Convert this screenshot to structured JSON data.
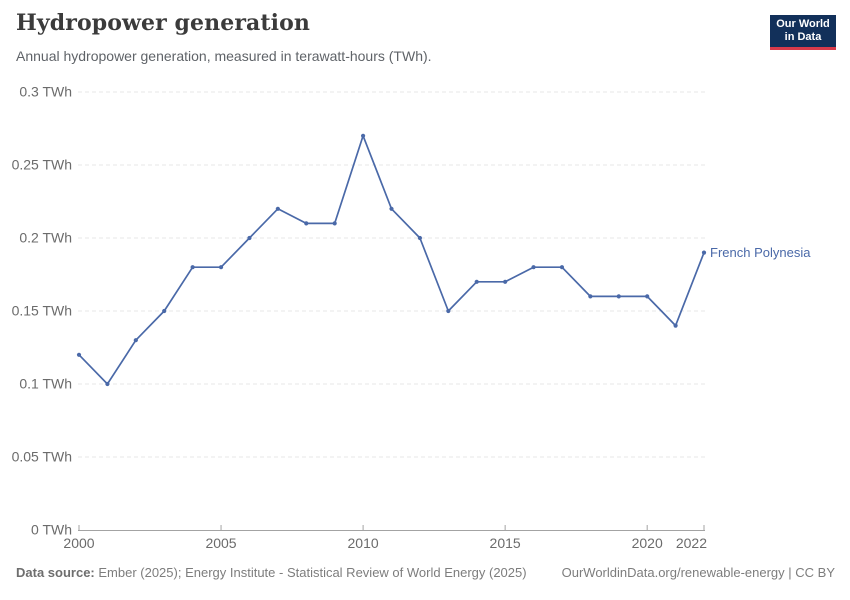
{
  "header": {
    "title": "Hydropower generation",
    "subtitle": "Annual hydropower generation, measured in terawatt-hours (TWh)."
  },
  "logo": {
    "line1": "Our World",
    "line2": "in Data"
  },
  "chart_data": {
    "type": "line",
    "title": "Hydropower generation",
    "xlabel": "",
    "ylabel": "TWh",
    "xlim": [
      2000,
      2022
    ],
    "ylim": [
      0,
      0.3
    ],
    "grid": "horizontal-dashed",
    "legend_position": "end-of-line-label",
    "x": [
      2000,
      2001,
      2002,
      2003,
      2004,
      2005,
      2006,
      2007,
      2008,
      2009,
      2010,
      2011,
      2012,
      2013,
      2014,
      2015,
      2016,
      2017,
      2018,
      2019,
      2020,
      2021,
      2022
    ],
    "series": [
      {
        "name": "French Polynesia",
        "color": "#4a69a8",
        "values": [
          0.12,
          0.1,
          0.13,
          0.15,
          0.18,
          0.18,
          0.2,
          0.22,
          0.21,
          0.21,
          0.27,
          0.22,
          0.2,
          0.15,
          0.17,
          0.17,
          0.18,
          0.18,
          0.16,
          0.16,
          0.16,
          0.14,
          0.19
        ]
      }
    ],
    "y_ticks": [
      {
        "value": 0,
        "label": "0 TWh"
      },
      {
        "value": 0.05,
        "label": "0.05 TWh"
      },
      {
        "value": 0.1,
        "label": "0.1 TWh"
      },
      {
        "value": 0.15,
        "label": "0.15 TWh"
      },
      {
        "value": 0.2,
        "label": "0.2 TWh"
      },
      {
        "value": 0.25,
        "label": "0.25 TWh"
      },
      {
        "value": 0.3,
        "label": "0.3 TWh"
      }
    ],
    "x_ticks": [
      {
        "value": 2000,
        "label": "2000"
      },
      {
        "value": 2005,
        "label": "2005"
      },
      {
        "value": 2010,
        "label": "2010"
      },
      {
        "value": 2015,
        "label": "2015"
      },
      {
        "value": 2020,
        "label": "2020"
      },
      {
        "value": 2022,
        "label": "2022"
      }
    ]
  },
  "colors": {
    "series_line": "#4a69a8",
    "grid_line": "#e7e7e7",
    "axis_line": "#a3a3a3",
    "tick_text": "#6b6b6b",
    "title_text": "#3b3b3b",
    "subtitle_text": "#5f6368",
    "logo_bg": "#12305a",
    "logo_red": "#d93a4a"
  },
  "footer": {
    "source_label": "Data source:",
    "source_text": " Ember (2025); Energy Institute - Statistical Review of World Energy (2025)",
    "right_text": "OurWorldinData.org/renewable-energy | CC BY"
  }
}
